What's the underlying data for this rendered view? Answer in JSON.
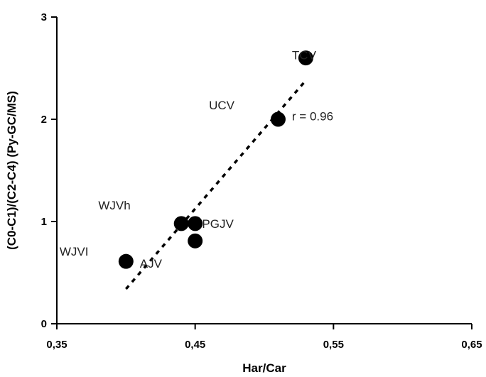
{
  "chart_data": {
    "type": "scatter",
    "xlabel": "Har/Car",
    "ylabel": "(C0-C1)/(C2-C4) (Py-GC/MS)",
    "xlim": [
      0.35,
      0.65
    ],
    "ylim": [
      0,
      3
    ],
    "x_ticks": [
      "0,35",
      "0,45",
      "0,55",
      "0,65"
    ],
    "y_ticks": [
      "0",
      "1",
      "2",
      "3"
    ],
    "grid": false,
    "points": [
      {
        "x": 0.4,
        "y": 0.61
      },
      {
        "x": 0.44,
        "y": 0.98
      },
      {
        "x": 0.45,
        "y": 0.98
      },
      {
        "x": 0.45,
        "y": 0.81
      },
      {
        "x": 0.51,
        "y": 2.0
      },
      {
        "x": 0.53,
        "y": 2.6
      }
    ],
    "trendline": {
      "x": [
        0.4,
        0.53
      ],
      "y": [
        0.34,
        2.38
      ]
    },
    "annotations": [
      {
        "text": "TCV",
        "x": 0.52,
        "y": 2.63
      },
      {
        "text": "UCV",
        "x": 0.46,
        "y": 2.14
      },
      {
        "text": "r = 0.96",
        "x": 0.52,
        "y": 2.03
      },
      {
        "text": "WJVh",
        "x": 0.38,
        "y": 1.16
      },
      {
        "text": "PGJV",
        "x": 0.455,
        "y": 0.98
      },
      {
        "text": "WJVI",
        "x": 0.352,
        "y": 0.71
      },
      {
        "text": "AJV",
        "x": 0.41,
        "y": 0.59
      }
    ]
  }
}
